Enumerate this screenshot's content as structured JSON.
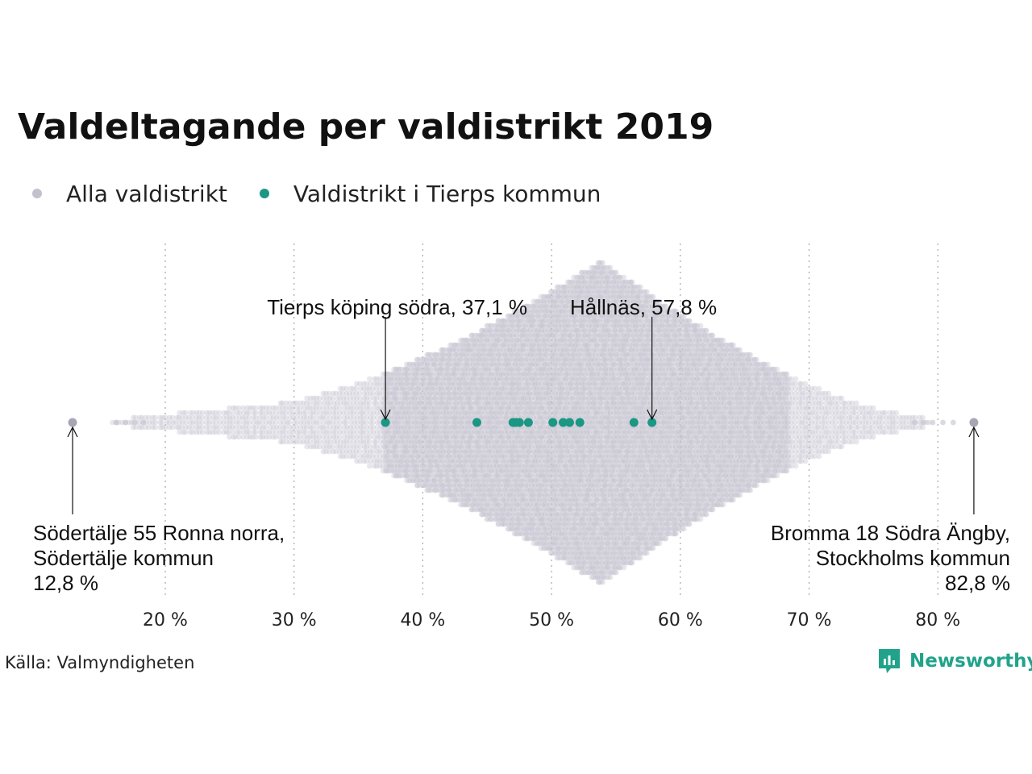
{
  "title": "Valdeltagande per valdistrikt 2019",
  "legend": [
    {
      "label": "Alla valdistrikt",
      "color": "#c3c1cd"
    },
    {
      "label": "Valdistrikt i Tierps kommun",
      "color": "#1b9784"
    }
  ],
  "source": "Källa: Valmyndigheten",
  "logo": {
    "text": "Newsworthy",
    "icon": "newsworthy-logo-icon",
    "color": "#21a38b"
  },
  "chart_data": {
    "type": "scatter",
    "subtype": "beeswarm",
    "x_axis": {
      "ticks": [
        20,
        30,
        40,
        50,
        60,
        70,
        80
      ],
      "tick_labels": [
        "20 %",
        "30 %",
        "40 %",
        "50 %",
        "60 %",
        "70 %",
        "80 %"
      ],
      "grid": "dotted-vertical"
    },
    "series": [
      {
        "name": "Alla valdistrikt",
        "color": "#c3c1cd",
        "distribution": {
          "min": 12.8,
          "max": 82.8,
          "peak": 53.8
        },
        "outliers": [
          12.8,
          82.8
        ]
      },
      {
        "name": "Valdistrikt i Tierps kommun",
        "color": "#1b9784",
        "values": [
          37.1,
          44.2,
          47.0,
          47.2,
          47.5,
          48.2,
          50.1,
          50.9,
          51.4,
          52.2,
          56.4,
          57.8
        ]
      }
    ],
    "annotations": [
      {
        "lines": [
          "Tierps köping södra, 37,1 %"
        ],
        "value": 37.1
      },
      {
        "lines": [
          "Hållnäs, 57,8 %"
        ],
        "value": 57.8
      },
      {
        "lines": [
          "Södertälje 55 Ronna norra,",
          "Södertälje kommun",
          "12,8 %"
        ],
        "value": 12.8
      },
      {
        "lines": [
          "Bromma 18 Södra Ängby,",
          "Stockholms kommun",
          "82,8 %"
        ],
        "value": 82.8
      }
    ]
  }
}
